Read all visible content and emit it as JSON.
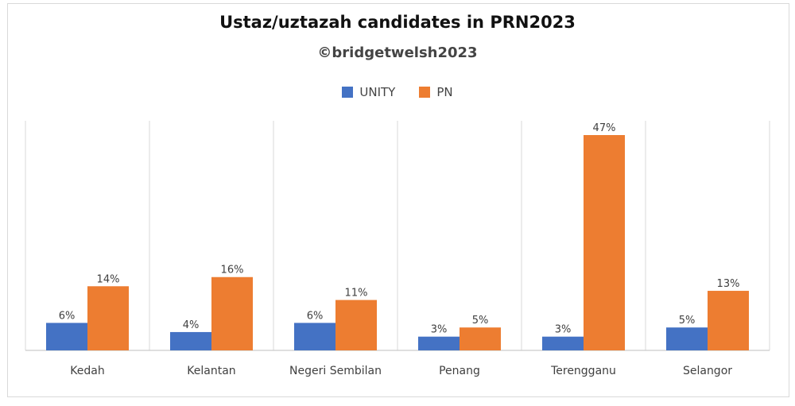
{
  "chart_data": {
    "type": "bar",
    "title": "Ustaz/uztazah candidates in PRN2023",
    "subtitle": "©bridgetwelsh2023",
    "categories": [
      "Kedah",
      "Kelantan",
      "Negeri Sembilan",
      "Penang",
      "Terengganu",
      "Selangor"
    ],
    "series": [
      {
        "name": "UNITY",
        "color": "#4472c4",
        "values": [
          6,
          4,
          6,
          3,
          3,
          5
        ],
        "labels": [
          "6%",
          "4%",
          "6%",
          "3%",
          "3%",
          "5%"
        ]
      },
      {
        "name": "PN",
        "color": "#ed7d31",
        "values": [
          14,
          16,
          11,
          5,
          47,
          13
        ],
        "labels": [
          "14%",
          "16%",
          "11%",
          "5%",
          "47%",
          "13%"
        ]
      }
    ],
    "ylim": [
      0,
      47
    ],
    "legend": "top-center",
    "grid": "vertical separators between categories",
    "xlabel": "",
    "ylabel": ""
  }
}
